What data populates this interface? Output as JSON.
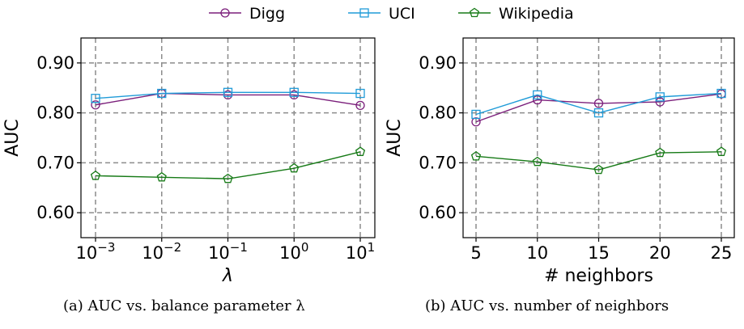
{
  "legend": [
    {
      "name": "Digg",
      "color": "#7b1f7b",
      "marker": "circle"
    },
    {
      "name": "UCI",
      "color": "#1f9bd8",
      "marker": "square"
    },
    {
      "name": "Wikipedia",
      "color": "#167a16",
      "marker": "pentagon"
    }
  ],
  "captions": {
    "a": "(a) AUC vs. balance parameter λ",
    "b": "(b) AUC vs. number of neighbors"
  },
  "chart_data": [
    {
      "type": "line",
      "xscale": "log",
      "x": [
        0.001,
        0.01,
        0.1,
        1,
        10
      ],
      "xtick_base": "10",
      "xtick_exponents": [
        "−3",
        "−2",
        "−1",
        "0",
        "1"
      ],
      "xlabel": "λ",
      "ylabel": "AUC",
      "ylim": [
        0.55,
        0.95
      ],
      "yticks": [
        "0.60",
        "0.70",
        "0.80",
        "0.90"
      ],
      "grid": true,
      "series": [
        {
          "name": "Digg",
          "values": [
            0.816,
            0.839,
            0.836,
            0.836,
            0.815
          ]
        },
        {
          "name": "UCI",
          "values": [
            0.829,
            0.839,
            0.841,
            0.841,
            0.839
          ]
        },
        {
          "name": "Wikipedia",
          "values": [
            0.674,
            0.671,
            0.668,
            0.689,
            0.722
          ]
        }
      ]
    },
    {
      "type": "line",
      "xscale": "linear",
      "x": [
        5,
        10,
        15,
        20,
        25
      ],
      "xticks": [
        "5",
        "10",
        "15",
        "20",
        "25"
      ],
      "xlabel": "# neighbors",
      "ylabel": "AUC",
      "ylim": [
        0.55,
        0.95
      ],
      "yticks": [
        "0.60",
        "0.70",
        "0.80",
        "0.90"
      ],
      "grid": true,
      "series": [
        {
          "name": "Digg",
          "values": [
            0.782,
            0.826,
            0.819,
            0.822,
            0.838
          ]
        },
        {
          "name": "UCI",
          "values": [
            0.797,
            0.836,
            0.8,
            0.832,
            0.839
          ]
        },
        {
          "name": "Wikipedia",
          "values": [
            0.713,
            0.702,
            0.686,
            0.72,
            0.722
          ]
        }
      ]
    }
  ]
}
